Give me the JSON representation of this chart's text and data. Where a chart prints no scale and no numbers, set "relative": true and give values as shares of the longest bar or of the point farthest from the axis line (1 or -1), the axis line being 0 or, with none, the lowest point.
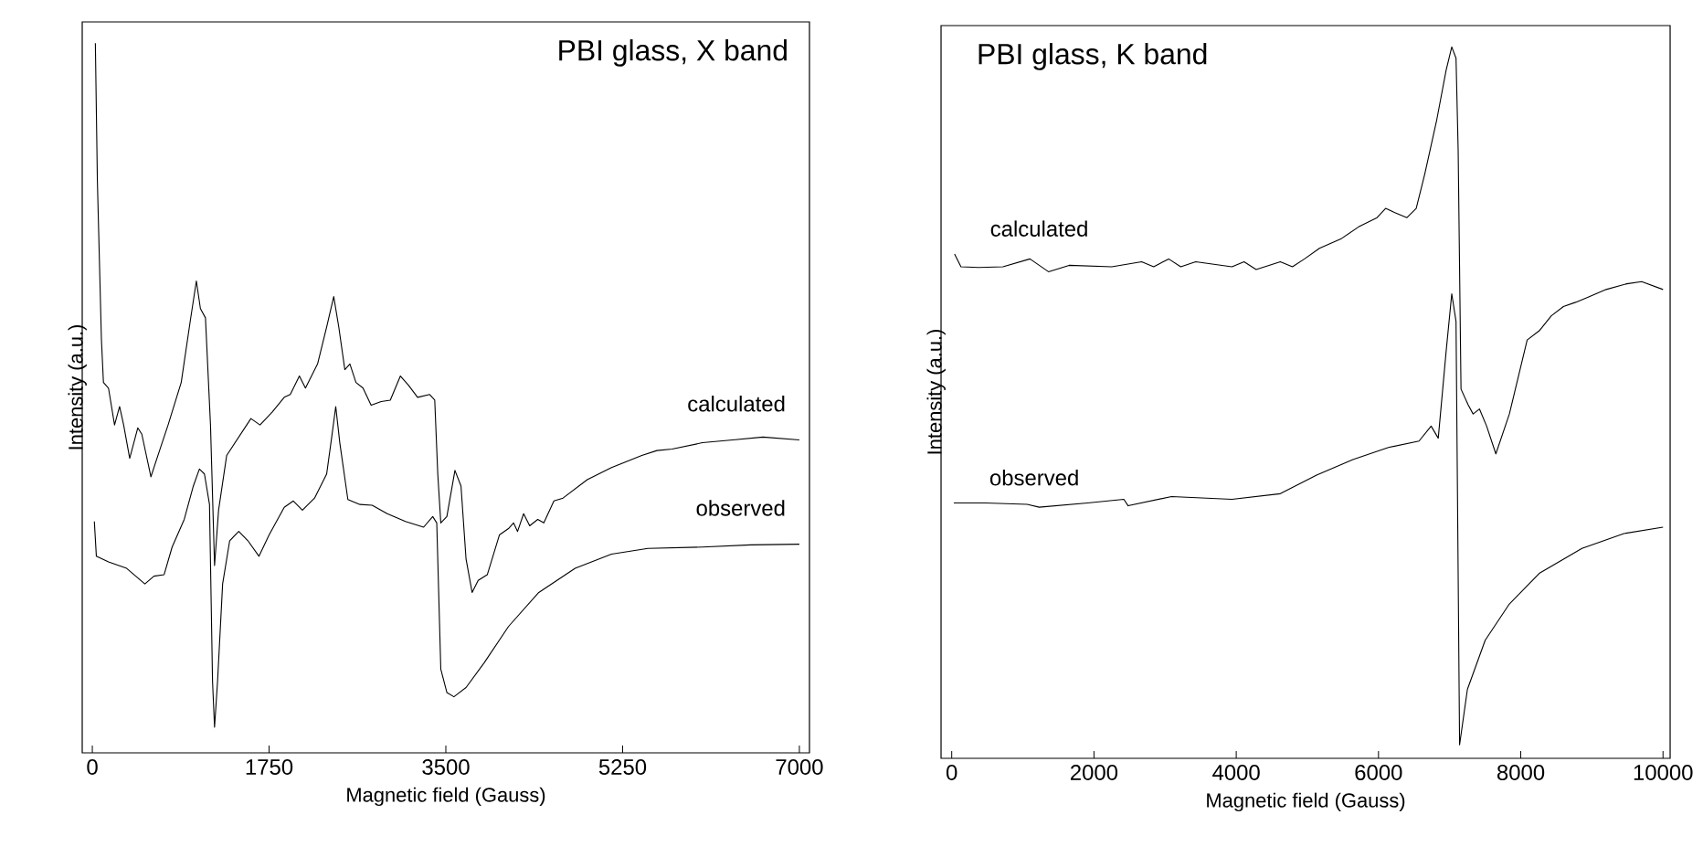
{
  "chart_data": [
    {
      "type": "line",
      "title": "PBI glass, X band",
      "xlabel": "Magnetic field (Gauss)",
      "ylabel": "Intensity (a.u.)",
      "relative": true,
      "tick_labels": "x",
      "xlim": [
        -100,
        7100
      ],
      "xticks": [
        0,
        1750,
        3500,
        5250,
        7000
      ],
      "legend": false,
      "series": [
        {
          "name": "calculated",
          "color": "#000000",
          "x": [
            30,
            50,
            90,
            110,
            160,
            220,
            270,
            310,
            370,
            450,
            490,
            580,
            670,
            750,
            880,
            970,
            1030,
            1070,
            1120,
            1170,
            1210,
            1250,
            1330,
            1450,
            1570,
            1660,
            1780,
            1900,
            1960,
            2050,
            2110,
            2230,
            2320,
            2390,
            2440,
            2500,
            2550,
            2610,
            2680,
            2760,
            2860,
            2950,
            3050,
            3130,
            3220,
            3340,
            3390,
            3420,
            3450,
            3510,
            3590,
            3650,
            3700,
            3760,
            3820,
            3910,
            4030,
            4120,
            4170,
            4210,
            4270,
            4330,
            4410,
            4470,
            4570,
            4660,
            4900,
            5140,
            5440,
            5590,
            5740,
            6040,
            6340,
            6640,
            7000
          ],
          "values": [
            1.0,
            0.806,
            0.583,
            0.522,
            0.514,
            0.462,
            0.488,
            0.462,
            0.415,
            0.458,
            0.449,
            0.389,
            0.428,
            0.462,
            0.522,
            0.609,
            0.665,
            0.626,
            0.613,
            0.462,
            0.264,
            0.342,
            0.419,
            0.445,
            0.471,
            0.462,
            0.48,
            0.501,
            0.505,
            0.531,
            0.514,
            0.548,
            0.6,
            0.643,
            0.6,
            0.54,
            0.548,
            0.522,
            0.514,
            0.49,
            0.495,
            0.497,
            0.531,
            0.518,
            0.501,
            0.505,
            0.497,
            0.393,
            0.324,
            0.333,
            0.398,
            0.376,
            0.273,
            0.226,
            0.243,
            0.251,
            0.307,
            0.316,
            0.324,
            0.312,
            0.337,
            0.32,
            0.329,
            0.324,
            0.355,
            0.359,
            0.385,
            0.402,
            0.419,
            0.426,
            0.428,
            0.437,
            0.441,
            0.445,
            0.441
          ]
        },
        {
          "name": "observed",
          "color": "#000000",
          "x": [
            20,
            40,
            160,
            340,
            520,
            610,
            710,
            790,
            910,
            1000,
            1060,
            1110,
            1160,
            1190,
            1210,
            1240,
            1290,
            1360,
            1450,
            1540,
            1650,
            1750,
            1900,
            1990,
            2080,
            2200,
            2320,
            2370,
            2410,
            2450,
            2530,
            2650,
            2770,
            2920,
            3100,
            3280,
            3370,
            3410,
            3450,
            3510,
            3580,
            3700,
            3880,
            4120,
            4420,
            4780,
            5140,
            5500,
            6040,
            6520,
            7000
          ],
          "values": [
            0.326,
            0.277,
            0.269,
            0.26,
            0.238,
            0.249,
            0.251,
            0.29,
            0.329,
            0.376,
            0.4,
            0.393,
            0.35,
            0.101,
            0.036,
            0.101,
            0.238,
            0.299,
            0.312,
            0.299,
            0.277,
            0.307,
            0.346,
            0.355,
            0.342,
            0.359,
            0.393,
            0.445,
            0.488,
            0.437,
            0.357,
            0.35,
            0.349,
            0.337,
            0.326,
            0.318,
            0.333,
            0.324,
            0.118,
            0.085,
            0.079,
            0.092,
            0.127,
            0.178,
            0.226,
            0.26,
            0.28,
            0.288,
            0.29,
            0.293,
            0.294
          ]
        }
      ]
    },
    {
      "type": "line",
      "title": "PBI glass, K band",
      "xlabel": "Magnetic field (Gauss)",
      "ylabel": "Intensity (a.u.)",
      "relative": true,
      "tick_labels": "x",
      "xlim": [
        -150,
        10100
      ],
      "xticks": [
        0,
        2000,
        4000,
        6000,
        8000,
        10000
      ],
      "legend": false,
      "series": [
        {
          "name": "calculated",
          "color": "#000000",
          "x": [
            40,
            130,
            380,
            720,
            1100,
            1360,
            1650,
            2250,
            2670,
            2840,
            3050,
            3220,
            3430,
            3940,
            4110,
            4280,
            4620,
            4790,
            4960,
            5170,
            5470,
            5720,
            5980,
            6100,
            6230,
            6400,
            6530,
            6650,
            6820,
            6950,
            7030,
            7090,
            7120,
            7160,
            7260,
            7330,
            7420,
            7520,
            7650,
            7840,
            8090,
            8260,
            8430,
            8600,
            8770,
            8940,
            9200,
            9490,
            9700,
            10000
          ],
          "values": [
            0.709,
            0.691,
            0.69,
            0.691,
            0.702,
            0.684,
            0.693,
            0.691,
            0.698,
            0.691,
            0.702,
            0.691,
            0.698,
            0.691,
            0.698,
            0.687,
            0.698,
            0.691,
            0.702,
            0.717,
            0.73,
            0.747,
            0.76,
            0.773,
            0.767,
            0.76,
            0.773,
            0.821,
            0.898,
            0.967,
            1.0,
            0.984,
            0.855,
            0.519,
            0.497,
            0.484,
            0.491,
            0.467,
            0.428,
            0.484,
            0.588,
            0.601,
            0.622,
            0.635,
            0.641,
            0.648,
            0.659,
            0.667,
            0.67,
            0.659
          ]
        },
        {
          "name": "observed",
          "color": "#000000",
          "x": [
            30,
            470,
            1060,
            1230,
            1910,
            2420,
            2480,
            3090,
            3940,
            4620,
            5130,
            5640,
            6140,
            6570,
            6740,
            6840,
            6950,
            7030,
            7090,
            7140,
            7250,
            7500,
            7840,
            8260,
            8860,
            9450,
            10000
          ],
          "values": [
            0.359,
            0.359,
            0.357,
            0.353,
            0.359,
            0.364,
            0.355,
            0.368,
            0.364,
            0.372,
            0.398,
            0.42,
            0.437,
            0.446,
            0.467,
            0.45,
            0.571,
            0.653,
            0.614,
            0.019,
            0.097,
            0.166,
            0.217,
            0.26,
            0.295,
            0.316,
            0.325
          ]
        }
      ]
    }
  ]
}
